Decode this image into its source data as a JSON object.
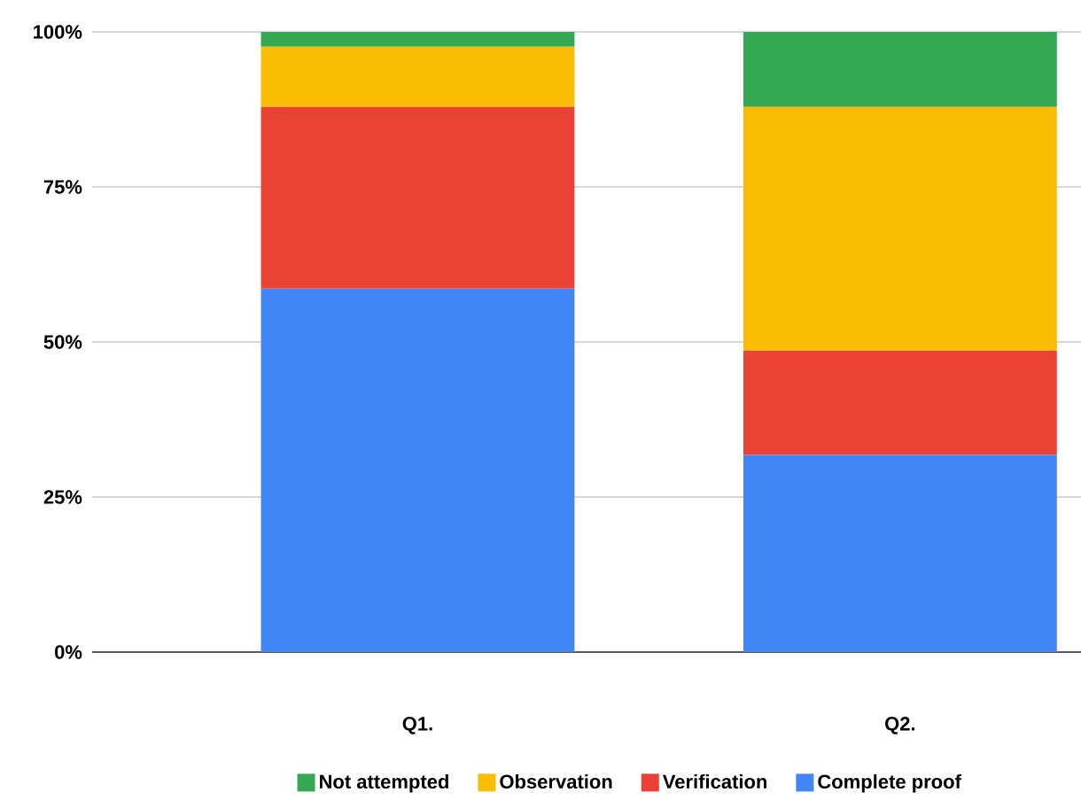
{
  "chart_data": {
    "type": "bar",
    "stacked": true,
    "categories": [
      "Q1.",
      "Q2."
    ],
    "series": [
      {
        "name": "Complete proof",
        "color": "#4285f4",
        "values": [
          58.6,
          31.8
        ]
      },
      {
        "name": "Verification",
        "color": "#ea4335",
        "values": [
          29.3,
          16.8
        ]
      },
      {
        "name": "Observation",
        "color": "#fbbc04",
        "values": [
          9.7,
          39.3
        ]
      },
      {
        "name": "Not attempted",
        "color": "#34a853",
        "values": [
          2.4,
          12.1
        ]
      }
    ],
    "ylim": [
      0,
      100
    ],
    "yticks": [
      {
        "value": 0,
        "label": "0%"
      },
      {
        "value": 25,
        "label": "25%"
      },
      {
        "value": 50,
        "label": "50%"
      },
      {
        "value": 75,
        "label": "75%"
      },
      {
        "value": 100,
        "label": "100%"
      }
    ],
    "grid": "y",
    "legend": "bottom"
  }
}
